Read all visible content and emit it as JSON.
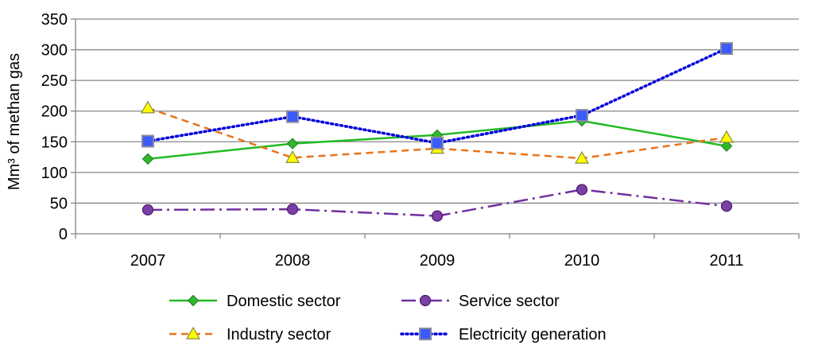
{
  "chart_data": {
    "type": "line",
    "categories": [
      "2007",
      "2008",
      "2009",
      "2010",
      "2011"
    ],
    "ylabel": "Mm³ of methan gas",
    "xlabel": "",
    "ylim": [
      0,
      350
    ],
    "yticks": [
      0,
      50,
      100,
      150,
      200,
      250,
      300,
      350
    ],
    "grid": true,
    "legend_position": "bottom",
    "series": [
      {
        "name": "Domestic sector",
        "values": [
          122,
          147,
          161,
          184,
          143
        ],
        "color": "#22bb22",
        "marker": "diamond",
        "dash": "solid",
        "marker_fill": "#2fb82f"
      },
      {
        "name": "Service sector",
        "values": [
          39,
          40,
          29,
          72,
          45
        ],
        "color": "#7030a0",
        "marker": "circle",
        "dash": "dashdot",
        "marker_fill": "#7b3fa6"
      },
      {
        "name": "Industry sector",
        "values": [
          205,
          124,
          139,
          123,
          157
        ],
        "color": "#e8741a",
        "marker": "triangle",
        "dash": "dashed",
        "marker_fill": "#ffff00"
      },
      {
        "name": "Electricity generation",
        "values": [
          151,
          191,
          148,
          193,
          302
        ],
        "color": "#0000dd",
        "marker": "square",
        "dash": "dotted",
        "marker_fill": "#3b5bff"
      }
    ]
  }
}
